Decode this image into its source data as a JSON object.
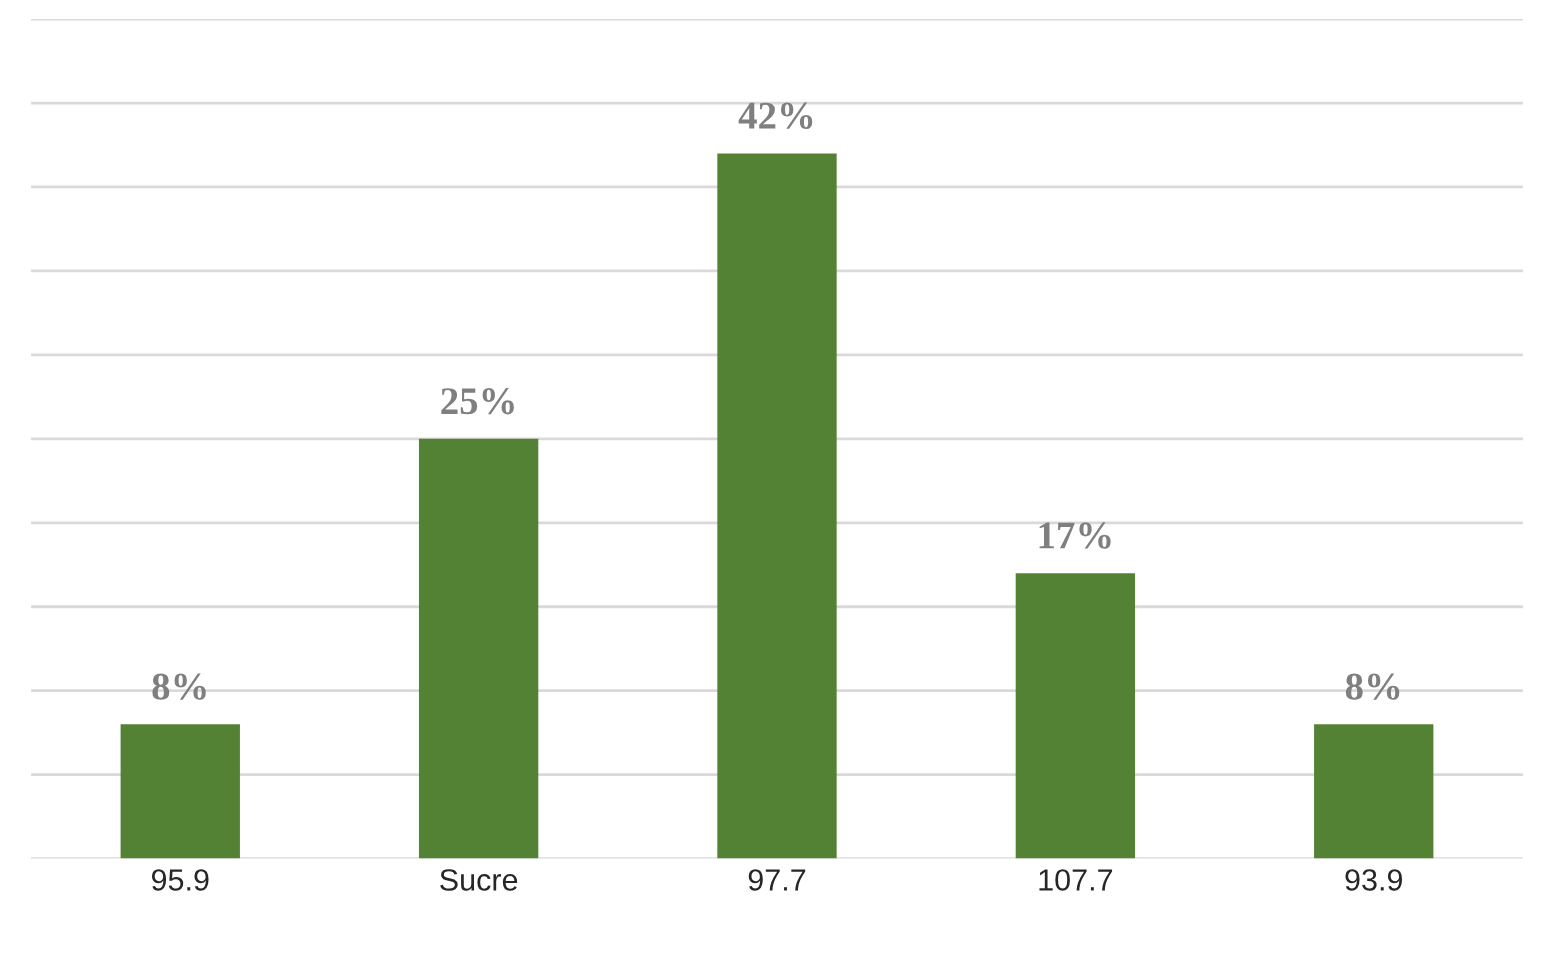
{
  "chart_data": {
    "type": "bar",
    "categories": [
      "95.9",
      "Sucre",
      "97.7",
      "107.7",
      "93.9"
    ],
    "values": [
      8,
      25,
      42,
      17,
      8
    ],
    "value_labels": [
      "8%",
      "25%",
      "42%",
      "17%",
      "8%"
    ],
    "color": "#548235",
    "ylim": [
      0,
      50
    ],
    "yticks": [
      {
        "value": 0,
        "label": null
      },
      {
        "value": 5,
        "label": null
      },
      {
        "value": 10,
        "label": null
      },
      {
        "value": 15,
        "label": null
      },
      {
        "value": 20,
        "label": null
      },
      {
        "value": 25,
        "label": null
      },
      {
        "value": 30,
        "label": null
      },
      {
        "value": 35,
        "label": null
      },
      {
        "value": 40,
        "label": null
      },
      {
        "value": 45,
        "label": null
      },
      {
        "value": 50,
        "label": null
      }
    ],
    "grid": "y",
    "tick_labels": "x"
  }
}
